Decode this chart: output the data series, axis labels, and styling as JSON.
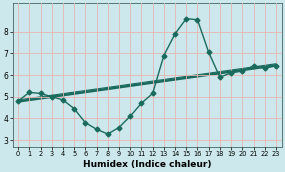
{
  "xlabel": "Humidex (Indice chaleur)",
  "bg_color": "#cce8ec",
  "grid_color": "#e8b4b4",
  "line_color": "#1a6b5e",
  "xlim": [
    -0.5,
    23.5
  ],
  "ylim": [
    2.7,
    9.3
  ],
  "xticks": [
    0,
    1,
    2,
    3,
    4,
    5,
    6,
    7,
    8,
    9,
    10,
    11,
    12,
    13,
    14,
    15,
    16,
    17,
    18,
    19,
    20,
    21,
    22,
    23
  ],
  "yticks": [
    3,
    4,
    5,
    6,
    7,
    8
  ],
  "line1_x": [
    0,
    1,
    2,
    3,
    4,
    5,
    6,
    7,
    8,
    9,
    10,
    11,
    12,
    13,
    14,
    15,
    16,
    17,
    18,
    19,
    20,
    21,
    22,
    23
  ],
  "line1_y": [
    4.8,
    5.2,
    5.15,
    5.0,
    4.85,
    4.45,
    3.8,
    3.5,
    3.28,
    3.58,
    4.1,
    4.7,
    5.15,
    6.9,
    7.9,
    8.6,
    8.55,
    7.05,
    5.9,
    6.1,
    6.18,
    6.42,
    6.32,
    6.42
  ],
  "line2_x": [
    0,
    23
  ],
  "line2_y": [
    4.78,
    6.45
  ],
  "marker": "D",
  "markersize": 2.5,
  "linewidth": 1.0,
  "trend_linewidth": 1.8
}
